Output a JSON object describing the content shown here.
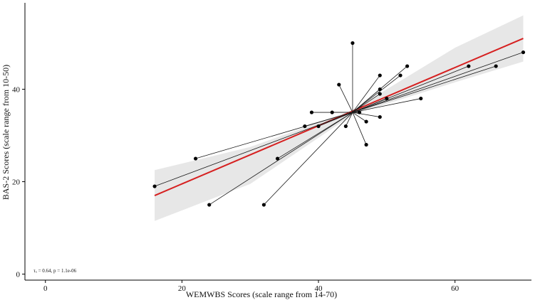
{
  "chart_data": {
    "type": "scatter",
    "xlabel": "WEMWBS Scores (scale range from 14-70)",
    "ylabel": "BAS-2 Scores (scale range from 10-50)",
    "xlim": [
      -3,
      71.2
    ],
    "ylim": [
      -1.3,
      58.7
    ],
    "x_ticks": [
      0,
      20,
      40,
      60
    ],
    "y_ticks": [
      0,
      20,
      40
    ],
    "grid": false,
    "annotation": "τₓ = 0.64, p = 1.1e-06",
    "center": {
      "x": 45,
      "y": 35
    },
    "points": [
      {
        "x": 16,
        "y": 19
      },
      {
        "x": 22,
        "y": 25
      },
      {
        "x": 24,
        "y": 15
      },
      {
        "x": 32,
        "y": 15
      },
      {
        "x": 34,
        "y": 25
      },
      {
        "x": 38,
        "y": 32
      },
      {
        "x": 39,
        "y": 35
      },
      {
        "x": 40,
        "y": 32
      },
      {
        "x": 42,
        "y": 35
      },
      {
        "x": 43,
        "y": 41
      },
      {
        "x": 44,
        "y": 32
      },
      {
        "x": 45,
        "y": 50
      },
      {
        "x": 46,
        "y": 35
      },
      {
        "x": 47,
        "y": 33
      },
      {
        "x": 47,
        "y": 28
      },
      {
        "x": 49,
        "y": 43
      },
      {
        "x": 49,
        "y": 40
      },
      {
        "x": 49,
        "y": 39
      },
      {
        "x": 49,
        "y": 34
      },
      {
        "x": 50,
        "y": 38
      },
      {
        "x": 52,
        "y": 43
      },
      {
        "x": 53,
        "y": 45
      },
      {
        "x": 55,
        "y": 38
      },
      {
        "x": 62,
        "y": 45
      },
      {
        "x": 66,
        "y": 45
      },
      {
        "x": 70,
        "y": 48
      }
    ],
    "fit_line": {
      "x": [
        16,
        70
      ],
      "y": [
        17,
        51
      ]
    },
    "confidence_band": {
      "x": [
        16,
        30,
        45,
        60,
        70
      ],
      "upper": [
        22.5,
        27.5,
        35.5,
        49,
        56
      ],
      "lower": [
        11.5,
        19.5,
        34.5,
        41.5,
        46
      ]
    },
    "colors": {
      "points": "#000000",
      "spokes": "#1a1a1a",
      "fit_line": "#d62020",
      "band": "#e7e7e7",
      "axis": "#000000"
    }
  }
}
